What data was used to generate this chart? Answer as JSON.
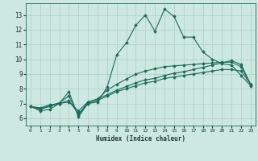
{
  "xlabel": "Humidex (Indice chaleur)",
  "ylabel": "",
  "xlim": [
    -0.5,
    23.5
  ],
  "ylim": [
    5.5,
    13.8
  ],
  "xticks": [
    0,
    1,
    2,
    3,
    4,
    5,
    6,
    7,
    8,
    9,
    10,
    11,
    12,
    13,
    14,
    15,
    16,
    17,
    18,
    19,
    20,
    21,
    22,
    23
  ],
  "yticks": [
    6,
    7,
    8,
    9,
    10,
    11,
    12,
    13
  ],
  "bg_color": "#cce8e0",
  "grid_color": "#aacfc8",
  "line_color": "#1a6b5a",
  "series": [
    [
      6.8,
      6.5,
      6.6,
      7.0,
      7.8,
      6.1,
      7.0,
      7.1,
      8.1,
      10.3,
      11.1,
      12.3,
      13.0,
      11.9,
      13.4,
      12.9,
      11.5,
      11.5,
      10.5,
      10.0,
      9.7,
      9.6,
      8.9,
      8.2
    ],
    [
      6.8,
      6.6,
      6.8,
      7.0,
      7.2,
      6.3,
      7.0,
      7.2,
      7.5,
      7.8,
      8.0,
      8.2,
      8.4,
      8.5,
      8.7,
      8.8,
      8.9,
      9.0,
      9.1,
      9.2,
      9.3,
      9.3,
      9.2,
      8.3
    ],
    [
      6.8,
      6.7,
      6.9,
      7.0,
      7.1,
      6.5,
      7.1,
      7.3,
      7.6,
      7.9,
      8.15,
      8.4,
      8.6,
      8.7,
      8.9,
      9.05,
      9.15,
      9.3,
      9.45,
      9.6,
      9.75,
      9.9,
      9.65,
      8.3
    ],
    [
      6.8,
      6.65,
      6.85,
      7.05,
      7.5,
      6.2,
      7.1,
      7.3,
      7.9,
      8.3,
      8.65,
      9.0,
      9.2,
      9.35,
      9.5,
      9.55,
      9.6,
      9.65,
      9.7,
      9.75,
      9.8,
      9.8,
      9.5,
      8.3
    ]
  ]
}
